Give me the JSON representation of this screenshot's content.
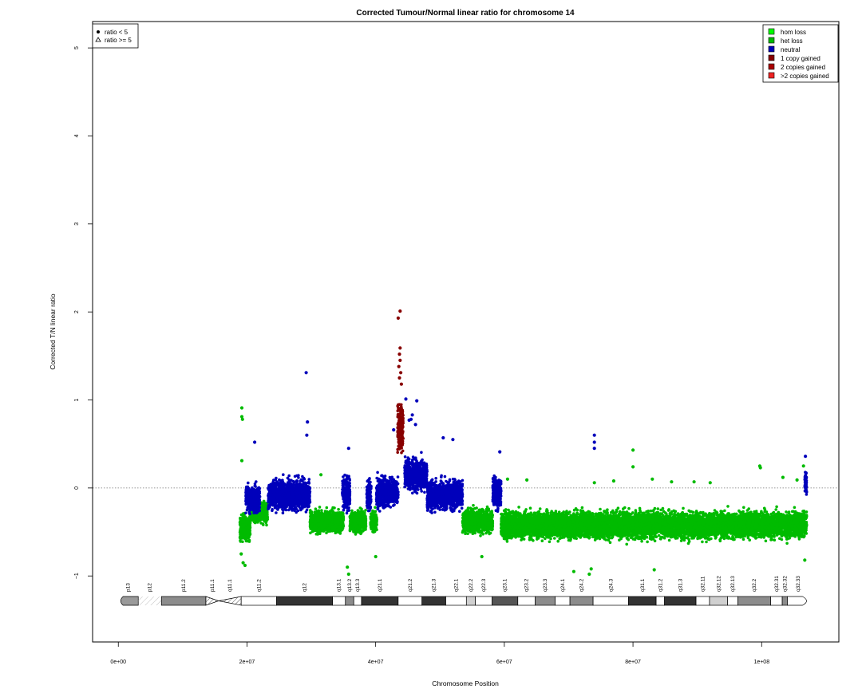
{
  "chart_data": {
    "type": "scatter",
    "title": "Corrected Tumour/Normal linear ratio for chromosome  14",
    "xlabel": "Chromosome Position",
    "ylabel": "Corrected T/N linear ratio",
    "xlim": [
      -4000000,
      112000000
    ],
    "ylim": [
      -1.75,
      5.3
    ],
    "x_ticks": [
      {
        "value": 0,
        "label": "0e+00"
      },
      {
        "value": 20000000,
        "label": "2e+07"
      },
      {
        "value": 40000000,
        "label": "4e+07"
      },
      {
        "value": 60000000,
        "label": "6e+07"
      },
      {
        "value": 80000000,
        "label": "8e+07"
      },
      {
        "value": 100000000,
        "label": "1e+08"
      }
    ],
    "y_ticks": [
      {
        "value": -1,
        "label": "−1"
      },
      {
        "value": 0,
        "label": "0"
      },
      {
        "value": 1,
        "label": "1"
      },
      {
        "value": 2,
        "label": "2"
      },
      {
        "value": 3,
        "label": "3"
      },
      {
        "value": 4,
        "label": "4"
      },
      {
        "value": 5,
        "label": "5"
      }
    ],
    "reference_line": {
      "y": 0,
      "style": "dotted"
    },
    "grid": false,
    "shape_legend": {
      "placement": "top-left",
      "entries": [
        {
          "symbol": "dot",
          "label": "ratio < 5"
        },
        {
          "symbol": "triangle",
          "label": "ratio >= 5"
        }
      ]
    },
    "legend": {
      "placement": "top-right",
      "entries": [
        {
          "label": "hom loss",
          "color": "#00ff00"
        },
        {
          "label": "het loss",
          "color": "#00bb00"
        },
        {
          "label": "neutral",
          "color": "#0000bb"
        },
        {
          "label": "1 copy gained",
          "color": "#880000"
        },
        {
          "label": "2 copies gained",
          "color": "#aa0000"
        },
        {
          "label": ">2 copies gained",
          "color": "#ee2222"
        }
      ]
    },
    "series": [
      {
        "name": "het loss",
        "color": "#00bb00",
        "marker": "dot",
        "segments": [
          {
            "x": [
              18900000,
              20500000
            ],
            "center": -0.45,
            "spread": 0.25
          },
          {
            "x": [
              20500000,
              23200000
            ],
            "center": -0.28,
            "spread": 0.2
          },
          {
            "x": [
              29800000,
              35000000
            ],
            "center": -0.38,
            "spread": 0.2
          },
          {
            "x": [
              36000000,
              38500000
            ],
            "center": -0.38,
            "spread": 0.2
          },
          {
            "x": [
              39200000,
              40200000
            ],
            "center": -0.38,
            "spread": 0.2
          },
          {
            "x": [
              53500000,
              58200000
            ],
            "center": -0.38,
            "spread": 0.22
          },
          {
            "x": [
              59500000,
              107000000
            ],
            "center": -0.42,
            "spread": 0.25
          }
        ],
        "points": [
          {
            "x": 19200000,
            "y": 0.91
          },
          {
            "x": 19200000,
            "y": 0.81
          },
          {
            "x": 19300000,
            "y": 0.78
          },
          {
            "x": 19200000,
            "y": 0.31
          },
          {
            "x": 19400000,
            "y": -0.85
          },
          {
            "x": 19700000,
            "y": -0.88
          },
          {
            "x": 19100000,
            "y": -0.75
          },
          {
            "x": 31500000,
            "y": 0.15
          },
          {
            "x": 35800000,
            "y": -0.98
          },
          {
            "x": 35600000,
            "y": -0.9
          },
          {
            "x": 40000000,
            "y": -0.78
          },
          {
            "x": 56500000,
            "y": -0.78
          },
          {
            "x": 60500000,
            "y": 0.1
          },
          {
            "x": 63500000,
            "y": 0.09
          },
          {
            "x": 70800000,
            "y": -0.95
          },
          {
            "x": 73200000,
            "y": -0.98
          },
          {
            "x": 73500000,
            "y": -0.92
          },
          {
            "x": 74000000,
            "y": 0.06
          },
          {
            "x": 77000000,
            "y": 0.08
          },
          {
            "x": 80000000,
            "y": 0.43
          },
          {
            "x": 80000000,
            "y": 0.24
          },
          {
            "x": 83300000,
            "y": -0.93
          },
          {
            "x": 83000000,
            "y": 0.1
          },
          {
            "x": 86000000,
            "y": 0.07
          },
          {
            "x": 89500000,
            "y": 0.07
          },
          {
            "x": 92000000,
            "y": 0.06
          },
          {
            "x": 99700000,
            "y": 0.25
          },
          {
            "x": 99800000,
            "y": 0.23
          },
          {
            "x": 103300000,
            "y": 0.12
          },
          {
            "x": 105500000,
            "y": 0.09
          },
          {
            "x": 106500000,
            "y": 0.25
          },
          {
            "x": 106700000,
            "y": -0.82
          }
        ]
      },
      {
        "name": "neutral",
        "color": "#0000bb",
        "marker": "dot",
        "segments": [
          {
            "x": [
              19800000,
              22000000
            ],
            "center": -0.12,
            "spread": 0.25
          },
          {
            "x": [
              23300000,
              29800000
            ],
            "center": -0.08,
            "spread": 0.28
          },
          {
            "x": [
              34800000,
              36000000
            ],
            "center": -0.05,
            "spread": 0.32
          },
          {
            "x": [
              38600000,
              39300000
            ],
            "center": -0.08,
            "spread": 0.3
          },
          {
            "x": [
              40100000,
              43500000
            ],
            "center": -0.05,
            "spread": 0.28
          },
          {
            "x": [
              44500000,
              48000000
            ],
            "center": 0.15,
            "spread": 0.3
          },
          {
            "x": [
              48000000,
              53500000
            ],
            "center": -0.08,
            "spread": 0.28
          },
          {
            "x": [
              58200000,
              59500000
            ],
            "center": -0.05,
            "spread": 0.3
          },
          {
            "x": [
              106700000,
              107000000
            ],
            "center": 0.05,
            "spread": 0.2
          }
        ],
        "points": [
          {
            "x": 21200000,
            "y": 0.52
          },
          {
            "x": 29200000,
            "y": 1.31
          },
          {
            "x": 29400000,
            "y": 0.75
          },
          {
            "x": 29300000,
            "y": 0.6
          },
          {
            "x": 35800000,
            "y": 0.45
          },
          {
            "x": 42800000,
            "y": 0.66
          },
          {
            "x": 44700000,
            "y": 1.01
          },
          {
            "x": 46400000,
            "y": 0.99
          },
          {
            "x": 45700000,
            "y": 0.83
          },
          {
            "x": 45500000,
            "y": 0.78
          },
          {
            "x": 45200000,
            "y": 0.77
          },
          {
            "x": 46200000,
            "y": 0.72
          },
          {
            "x": 50500000,
            "y": 0.57
          },
          {
            "x": 52000000,
            "y": 0.55
          },
          {
            "x": 59300000,
            "y": 0.41
          },
          {
            "x": 74000000,
            "y": 0.6
          },
          {
            "x": 74000000,
            "y": 0.52
          },
          {
            "x": 74000000,
            "y": 0.45
          },
          {
            "x": 106800000,
            "y": 0.36
          },
          {
            "x": 106900000,
            "y": 0.17
          }
        ]
      },
      {
        "name": "1 copy gained",
        "color": "#880000",
        "marker": "dot",
        "segments": [
          {
            "x": [
              43400000,
              44300000
            ],
            "center": 0.7,
            "spread": 0.45
          }
        ],
        "points": [
          {
            "x": 43800000,
            "y": 2.01
          },
          {
            "x": 43500000,
            "y": 1.93
          },
          {
            "x": 43800000,
            "y": 1.59
          },
          {
            "x": 43700000,
            "y": 1.52
          },
          {
            "x": 43800000,
            "y": 1.45
          },
          {
            "x": 43600000,
            "y": 1.38
          },
          {
            "x": 43900000,
            "y": 1.31
          },
          {
            "x": 43700000,
            "y": 1.25
          },
          {
            "x": 44000000,
            "y": 1.18
          }
        ]
      }
    ],
    "ideogram": {
      "bands": [
        {
          "name": "p13",
          "start": 0,
          "end": 3100000,
          "stain": "gvar"
        },
        {
          "name": "p12",
          "start": 3100000,
          "end": 6700000,
          "stain": "stalk"
        },
        {
          "name": "p11.2",
          "start": 6700000,
          "end": 13600000,
          "stain": "gpos50"
        },
        {
          "name": "p11.1",
          "start": 13600000,
          "end": 15600000,
          "stain": "acen"
        },
        {
          "name": "q11.1",
          "start": 15600000,
          "end": 19100000,
          "stain": "acen"
        },
        {
          "name": "q11.2",
          "start": 19100000,
          "end": 24600000,
          "stain": "gneg"
        },
        {
          "name": "q12",
          "start": 24600000,
          "end": 33300000,
          "stain": "gpos100"
        },
        {
          "name": "q13.1",
          "start": 33300000,
          "end": 35300000,
          "stain": "gneg"
        },
        {
          "name": "q13.2",
          "start": 35300000,
          "end": 36600000,
          "stain": "gpos50"
        },
        {
          "name": "q13.3",
          "start": 36600000,
          "end": 37800000,
          "stain": "gneg"
        },
        {
          "name": "q21.1",
          "start": 37800000,
          "end": 43500000,
          "stain": "gpos100"
        },
        {
          "name": "q21.2",
          "start": 43500000,
          "end": 47200000,
          "stain": "gneg"
        },
        {
          "name": "q21.3",
          "start": 47200000,
          "end": 50900000,
          "stain": "gpos100"
        },
        {
          "name": "q22.1",
          "start": 50900000,
          "end": 54100000,
          "stain": "gneg"
        },
        {
          "name": "q22.2",
          "start": 54100000,
          "end": 55500000,
          "stain": "gpos25"
        },
        {
          "name": "q22.3",
          "start": 55500000,
          "end": 58100000,
          "stain": "gneg"
        },
        {
          "name": "q23.1",
          "start": 58100000,
          "end": 62100000,
          "stain": "gpos75"
        },
        {
          "name": "q23.2",
          "start": 62100000,
          "end": 64800000,
          "stain": "gneg"
        },
        {
          "name": "q23.3",
          "start": 64800000,
          "end": 67900000,
          "stain": "gpos50"
        },
        {
          "name": "q24.1",
          "start": 67900000,
          "end": 70200000,
          "stain": "gneg"
        },
        {
          "name": "q24.2",
          "start": 70200000,
          "end": 73800000,
          "stain": "gpos50"
        },
        {
          "name": "q24.3",
          "start": 73800000,
          "end": 79300000,
          "stain": "gneg"
        },
        {
          "name": "q31.1",
          "start": 79300000,
          "end": 83600000,
          "stain": "gpos100"
        },
        {
          "name": "q31.2",
          "start": 83600000,
          "end": 84900000,
          "stain": "gneg"
        },
        {
          "name": "q31.3",
          "start": 84900000,
          "end": 89800000,
          "stain": "gpos100"
        },
        {
          "name": "q32.11",
          "start": 89800000,
          "end": 91900000,
          "stain": "gneg"
        },
        {
          "name": "q32.12",
          "start": 91900000,
          "end": 94700000,
          "stain": "gpos25"
        },
        {
          "name": "q32.13",
          "start": 94700000,
          "end": 96300000,
          "stain": "gneg"
        },
        {
          "name": "q32.2",
          "start": 96300000,
          "end": 101400000,
          "stain": "gpos50"
        },
        {
          "name": "q32.31",
          "start": 101400000,
          "end": 103200000,
          "stain": "gneg"
        },
        {
          "name": "q32.32",
          "start": 103200000,
          "end": 104000000,
          "stain": "gpos50"
        },
        {
          "name": "q32.33",
          "start": 104000000,
          "end": 107349540,
          "stain": "gneg"
        }
      ]
    }
  }
}
